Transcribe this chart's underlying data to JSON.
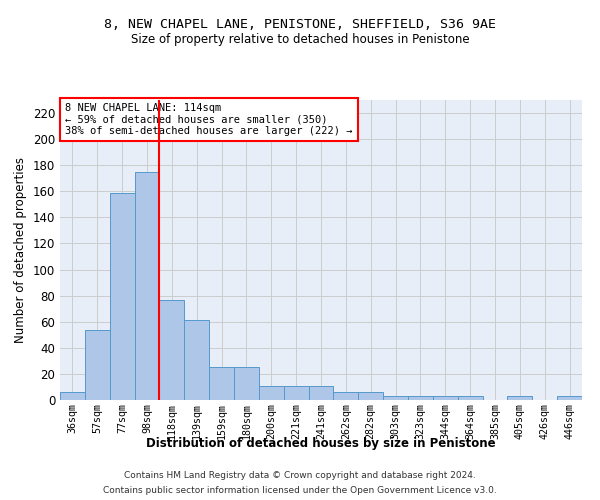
{
  "title": "8, NEW CHAPEL LANE, PENISTONE, SHEFFIELD, S36 9AE",
  "subtitle": "Size of property relative to detached houses in Penistone",
  "xlabel": "Distribution of detached houses by size in Penistone",
  "ylabel": "Number of detached properties",
  "bar_values": [
    6,
    54,
    159,
    175,
    77,
    61,
    25,
    25,
    11,
    11,
    11,
    6,
    6,
    3,
    3,
    3,
    3,
    0,
    3,
    0,
    3
  ],
  "bin_labels": [
    "36sqm",
    "57sqm",
    "77sqm",
    "98sqm",
    "118sqm",
    "139sqm",
    "159sqm",
    "180sqm",
    "200sqm",
    "221sqm",
    "241sqm",
    "262sqm",
    "282sqm",
    "303sqm",
    "323sqm",
    "344sqm",
    "364sqm",
    "385sqm",
    "405sqm",
    "426sqm",
    "446sqm"
  ],
  "bar_color": "#aec6e8",
  "bar_edge_color": "#5599cc",
  "grid_color": "#cccccc",
  "background_color": "#e8eef8",
  "vline_x_index": 3,
  "vline_color": "red",
  "annotation_text": "8 NEW CHAPEL LANE: 114sqm\n← 59% of detached houses are smaller (350)\n38% of semi-detached houses are larger (222) →",
  "annotation_box_color": "white",
  "annotation_box_edge": "red",
  "ylim": [
    0,
    230
  ],
  "yticks": [
    0,
    20,
    40,
    60,
    80,
    100,
    120,
    140,
    160,
    180,
    200,
    220
  ],
  "footer1": "Contains HM Land Registry data © Crown copyright and database right 2024.",
  "footer2": "Contains public sector information licensed under the Open Government Licence v3.0."
}
